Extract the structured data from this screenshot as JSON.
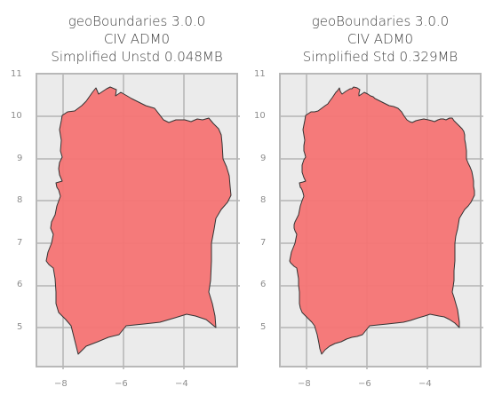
{
  "panels": [
    {
      "title_line1": "geoBoundaries 3.0.0",
      "title_line2": "CIV ADM0",
      "title_line3": "Simplified Unstd 0.048MB",
      "y_ticks": [
        "11",
        "10",
        "9",
        "8",
        "7",
        "6",
        "5"
      ],
      "x_ticks": [
        "−8",
        "−6",
        "−4"
      ]
    },
    {
      "title_line1": "geoBoundaries 3.0.0",
      "title_line2": "CIV ADM0",
      "title_line3": "Simplified Std 0.329MB",
      "y_ticks": [
        "11",
        "10",
        "9",
        "8",
        "7",
        "6",
        "5"
      ],
      "x_ticks": [
        "−8",
        "−6",
        "−4"
      ]
    }
  ],
  "colors": {
    "fill": "#f57474",
    "outline": "#333333",
    "plot_bg": "#ebebeb",
    "grid": "#b4b4b4"
  }
}
